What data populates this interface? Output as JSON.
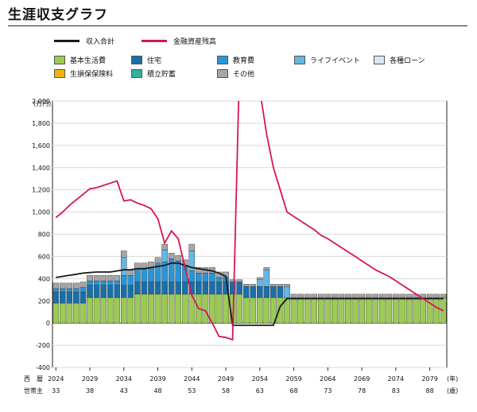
{
  "page": {
    "title": "生涯収支グラフ"
  },
  "legend": {
    "income": "収入合計",
    "assets": "金融資産残高",
    "basic": "基本生活費",
    "housing": "住宅",
    "education": "教育費",
    "life_event": "ライフイベント",
    "loans": "各種ローン",
    "insurance": "生損保保険料",
    "savings": "積立貯蓄",
    "other": "その他"
  },
  "colors": {
    "basic": "#9ccb54",
    "housing": "#1a6fa8",
    "education": "#2a95d6",
    "life_event": "#66b7e3",
    "loans": "#d6e8f5",
    "insurance": "#f2b400",
    "savings": "#2fb39c",
    "other": "#a6a6a6",
    "income": "#1a1a1a",
    "assets": "#d6145a"
  },
  "axis": {
    "y_unit": "(万円)",
    "x_row1_label": "西　暦",
    "x_row2_label": "世帯主",
    "x_row1_unit": "(年)",
    "x_row2_unit": "(歳)"
  },
  "chart_data": {
    "type": "bar",
    "ylim": [
      -400,
      2000
    ],
    "yticks": [
      -400,
      -200,
      0,
      200,
      400,
      600,
      800,
      1000,
      1200,
      1400,
      1600,
      1800,
      2000
    ],
    "ytick_labels": [
      "-400",
      "-200",
      "0",
      "200",
      "400",
      "600",
      "800",
      "1,000",
      "1,200",
      "1,400",
      "1,600",
      "1,800",
      "2,000"
    ],
    "year_ticks": [
      "2024",
      "2029",
      "2034",
      "2039",
      "2044",
      "2049",
      "2054",
      "2059",
      "2064",
      "2069",
      "2074",
      "2079"
    ],
    "age_ticks": [
      "33",
      "38",
      "43",
      "48",
      "53",
      "58",
      "63",
      "68",
      "73",
      "78",
      "83",
      "88"
    ],
    "years": [
      2024,
      2025,
      2026,
      2027,
      2028,
      2029,
      2030,
      2031,
      2032,
      2033,
      2034,
      2035,
      2036,
      2037,
      2038,
      2039,
      2040,
      2041,
      2042,
      2043,
      2044,
      2045,
      2046,
      2047,
      2048,
      2049,
      2050,
      2051,
      2052,
      2053,
      2054,
      2055,
      2056,
      2057,
      2058,
      2059,
      2060,
      2061,
      2062,
      2063,
      2064,
      2065,
      2066,
      2067,
      2068,
      2069,
      2070,
      2071,
      2072,
      2073,
      2074,
      2075,
      2076,
      2077,
      2078,
      2079,
      2080,
      2081
    ],
    "series": [
      {
        "name": "基本生活費",
        "values": [
          180,
          180,
          180,
          180,
          180,
          230,
          230,
          230,
          230,
          230,
          230,
          230,
          260,
          260,
          260,
          260,
          260,
          260,
          260,
          260,
          260,
          260,
          260,
          260,
          260,
          260,
          260,
          260,
          230,
          230,
          230,
          230,
          230,
          230,
          230,
          230,
          230,
          230,
          230,
          230,
          230,
          230,
          230,
          230,
          230,
          230,
          230,
          230,
          230,
          230,
          230,
          230,
          230,
          230,
          230,
          230,
          230,
          230
        ]
      },
      {
        "name": "住宅",
        "values": [
          100,
          100,
          100,
          100,
          100,
          110,
          110,
          110,
          110,
          110,
          110,
          110,
          110,
          110,
          110,
          110,
          110,
          110,
          110,
          110,
          110,
          110,
          110,
          110,
          110,
          110,
          110,
          110,
          100,
          100,
          100,
          100,
          100,
          100,
          0,
          0,
          0,
          0,
          0,
          0,
          0,
          0,
          0,
          0,
          0,
          0,
          0,
          0,
          0,
          0,
          0,
          0,
          0,
          0,
          0,
          0,
          0,
          0
        ]
      },
      {
        "name": "教育費",
        "values": [
          30,
          30,
          30,
          30,
          40,
          40,
          40,
          40,
          40,
          40,
          90,
          90,
          120,
          120,
          130,
          170,
          180,
          210,
          190,
          150,
          100,
          80,
          80,
          80,
          40,
          40,
          0,
          0,
          0,
          0,
          0,
          0,
          0,
          0,
          0,
          0,
          0,
          0,
          0,
          0,
          0,
          0,
          0,
          0,
          0,
          0,
          0,
          0,
          0,
          0,
          0,
          0,
          0,
          0,
          0,
          0,
          0,
          0
        ]
      },
      {
        "name": "ライフイベント",
        "values": [
          0,
          0,
          0,
          0,
          0,
          0,
          0,
          0,
          0,
          0,
          160,
          0,
          0,
          0,
          0,
          0,
          110,
          0,
          0,
          0,
          180,
          0,
          0,
          0,
          0,
          0,
          0,
          0,
          0,
          0,
          60,
          150,
          0,
          0,
          100,
          0,
          0,
          0,
          0,
          0,
          0,
          0,
          0,
          0,
          0,
          0,
          0,
          0,
          0,
          0,
          0,
          0,
          0,
          0,
          0,
          0,
          0,
          0
        ]
      },
      {
        "name": "その他",
        "values": [
          50,
          50,
          50,
          50,
          50,
          50,
          50,
          50,
          50,
          50,
          60,
          50,
          50,
          50,
          50,
          50,
          50,
          50,
          50,
          50,
          60,
          50,
          50,
          50,
          50,
          50,
          20,
          20,
          20,
          20,
          20,
          20,
          20,
          20,
          20,
          30,
          30,
          30,
          30,
          30,
          30,
          30,
          30,
          30,
          30,
          30,
          30,
          30,
          30,
          30,
          30,
          30,
          30,
          30,
          30,
          30,
          30,
          30
        ]
      }
    ],
    "income": [
      410,
      420,
      430,
      440,
      450,
      455,
      460,
      460,
      460,
      470,
      480,
      480,
      490,
      490,
      500,
      510,
      520,
      540,
      540,
      520,
      500,
      490,
      480,
      470,
      450,
      420,
      -20,
      -20,
      -20,
      -20,
      -20,
      -20,
      -20,
      150,
      220,
      220,
      220,
      220,
      220,
      220,
      220,
      220,
      220,
      220,
      220,
      220,
      220,
      220,
      220,
      220,
      220,
      220,
      220,
      220,
      220,
      220,
      220,
      220
    ],
    "assets": [
      950,
      1000,
      1060,
      1110,
      1160,
      1210,
      1220,
      1240,
      1260,
      1280,
      1100,
      1110,
      1080,
      1060,
      1030,
      940,
      720,
      830,
      760,
      500,
      250,
      130,
      110,
      0,
      -120,
      -130,
      -150,
      2300,
      2300,
      2300,
      2100,
      1700,
      1400,
      1200,
      1000,
      960,
      920,
      880,
      840,
      790,
      760,
      720,
      680,
      640,
      600,
      560,
      520,
      480,
      450,
      420,
      380,
      340,
      300,
      260,
      220,
      180,
      140,
      110
    ],
    "series_x_note": ""
  }
}
